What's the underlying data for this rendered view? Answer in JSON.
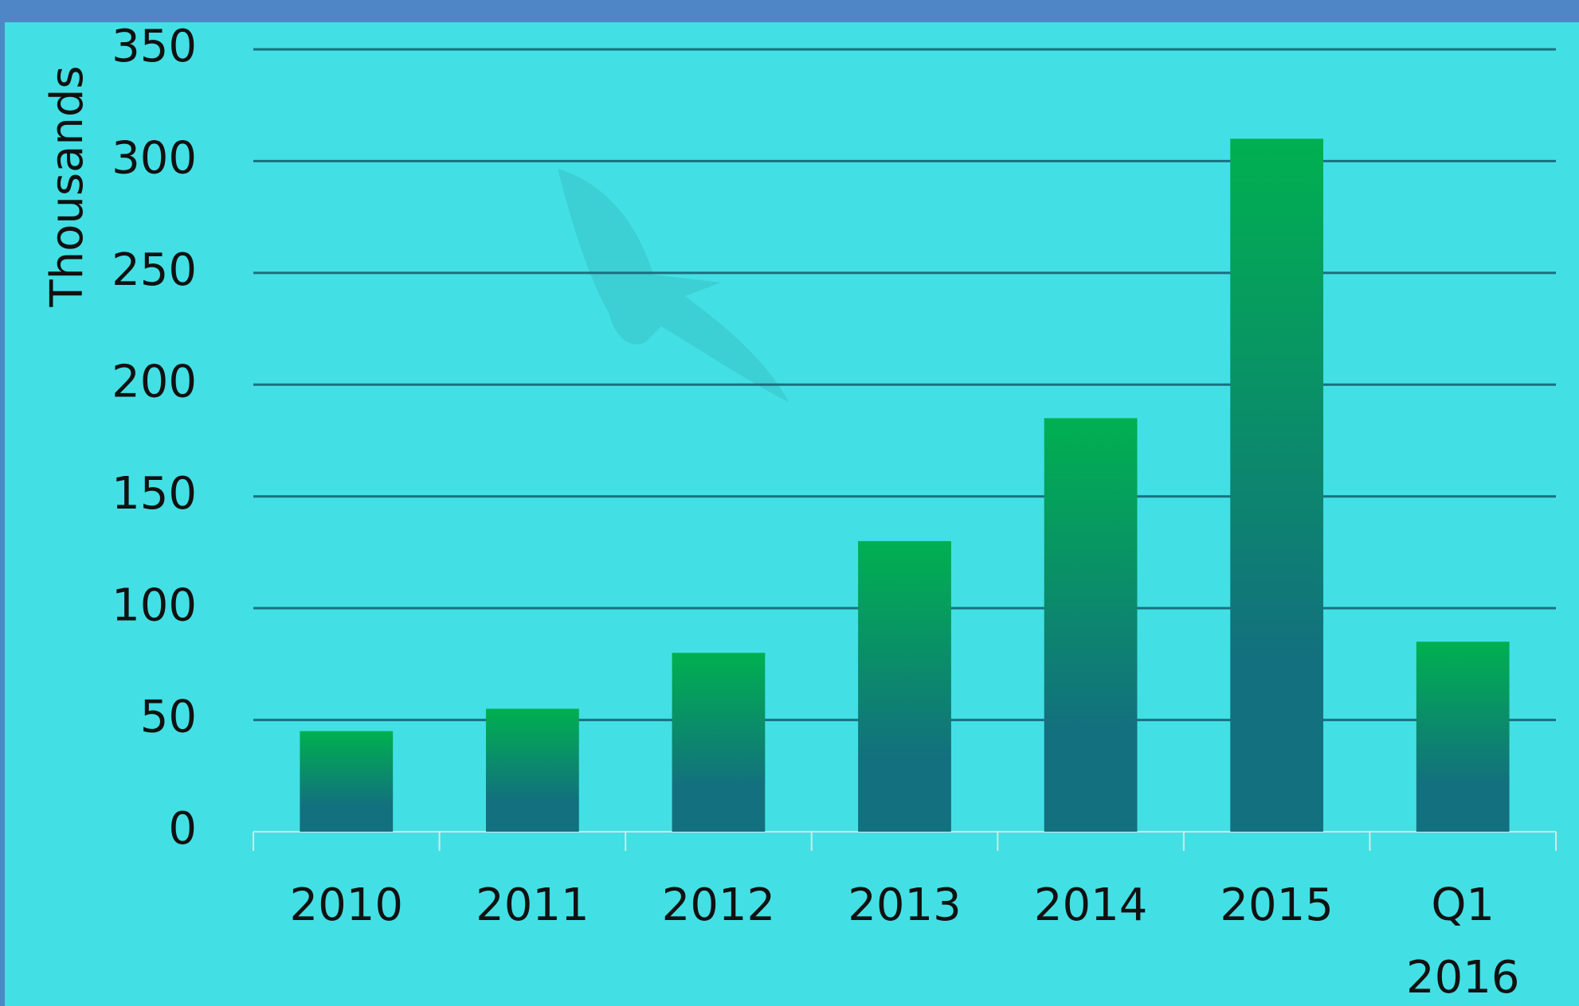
{
  "chart_data": {
    "type": "bar",
    "y_axis_label": "Thousands",
    "categories": [
      "2010",
      "2011",
      "2012",
      "2013",
      "2014",
      "2015",
      "Q1 2016"
    ],
    "values": [
      45,
      55,
      80,
      130,
      185,
      310,
      85
    ],
    "color_top": "#00b050",
    "color_bottom": "#13707e",
    "ylim": [
      0,
      350
    ],
    "yticks": [
      0,
      50,
      100,
      150,
      200,
      250,
      300,
      350
    ],
    "grid": true
  }
}
